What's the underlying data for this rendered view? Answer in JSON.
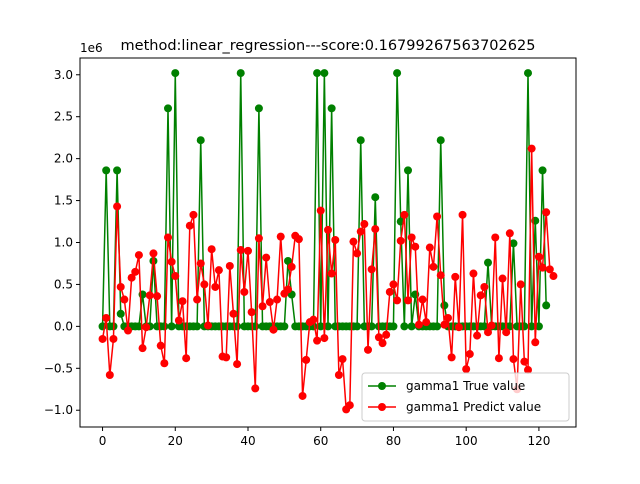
{
  "chart_data": {
    "type": "line",
    "title": "method:linear_regression---score:0.16799267563702625",
    "offset_label": "1e6",
    "xlim": [
      -6.2,
      130.2
    ],
    "ylim": [
      -1.2,
      3.2
    ],
    "x_ticks": [
      0,
      20,
      40,
      60,
      80,
      100,
      120
    ],
    "y_ticks": [
      -1.0,
      -0.5,
      0.0,
      0.5,
      1.0,
      1.5,
      2.0,
      2.5,
      3.0
    ],
    "x_tick_labels": [
      "0",
      "20",
      "40",
      "60",
      "80",
      "100",
      "120"
    ],
    "y_tick_labels": [
      "−1.0",
      "−0.5",
      "0.0",
      "0.5",
      "1.0",
      "1.5",
      "2.0",
      "2.5",
      "3.0"
    ],
    "legend_position": "lower-right",
    "series": [
      {
        "name": "gamma1 True value",
        "color": "#008000",
        "values": [
          0,
          1.86,
          0,
          0,
          1.86,
          0.15,
          0,
          0,
          0,
          0,
          0,
          0.38,
          0,
          0,
          0.78,
          0,
          0,
          0,
          2.6,
          0,
          3.02,
          0,
          0,
          0,
          0,
          0,
          0,
          2.22,
          0,
          0,
          0,
          0,
          0,
          0,
          0,
          0,
          0,
          0,
          3.02,
          0,
          0,
          0,
          0,
          2.6,
          0,
          0,
          0,
          0,
          0,
          0,
          0,
          0.78,
          0.38,
          0,
          0,
          0,
          0,
          0,
          0,
          3.02,
          0,
          3.02,
          0,
          2.6,
          0,
          0,
          0,
          0,
          0,
          0,
          0,
          2.22,
          0,
          0,
          0,
          1.54,
          0,
          0,
          0,
          0,
          0,
          3.02,
          1.25,
          0,
          1.86,
          0,
          0.38,
          0,
          0,
          0,
          0,
          0,
          0,
          2.22,
          0.25,
          0,
          0,
          0,
          0,
          0,
          0,
          0,
          0,
          0,
          0,
          0,
          0.76,
          0,
          0,
          0,
          0,
          0,
          0,
          0.99,
          0,
          0,
          0,
          3.02,
          0,
          1.26,
          0,
          1.86,
          0.25
        ]
      },
      {
        "name": "gamma1 Predict value",
        "color": "#ff0000",
        "values": [
          -0.15,
          0.1,
          -0.58,
          -0.15,
          1.43,
          0.47,
          0.32,
          -0.05,
          0.58,
          0.65,
          0.85,
          -0.26,
          -0.01,
          0.37,
          0.87,
          0.36,
          -0.23,
          -0.44,
          1.06,
          0.77,
          0.6,
          0.07,
          0.3,
          -0.38,
          1.2,
          1.33,
          0.32,
          0.75,
          0.5,
          0.01,
          0.92,
          0.47,
          0.67,
          -0.36,
          -0.37,
          0.72,
          0.15,
          -0.45,
          0.91,
          0.41,
          0.9,
          0.17,
          -0.74,
          1.05,
          0.24,
          0.82,
          0.29,
          -0.04,
          0.32,
          1.07,
          0.39,
          0.44,
          0.71,
          1.08,
          1.04,
          -0.83,
          -0.4,
          0.05,
          0.08,
          -0.17,
          1.38,
          -0.14,
          1.15,
          0.63,
          1.03,
          -0.58,
          -0.39,
          -0.99,
          -0.94,
          1.01,
          0.87,
          1.13,
          1.22,
          -0.28,
          0.68,
          1.16,
          -0.13,
          -0.2,
          -0.1,
          0.41,
          0.5,
          0.31,
          1.02,
          1.33,
          0.31,
          1.06,
          0.95,
          0.02,
          0.32,
          0.05,
          0.94,
          0.71,
          1.31,
          0.61,
          0.02,
          0.1,
          -0.37,
          0.59,
          -0.01,
          1.33,
          -0.51,
          -0.33,
          0.63,
          -0.11,
          0.37,
          0.47,
          -0.07,
          0.01,
          1.06,
          -0.38,
          0.57,
          -0.07,
          1.11,
          -0.39,
          -0.75,
          0.5,
          -0.42,
          -0.52,
          2.12,
          -0.19,
          0.83,
          0.7,
          1.36,
          0.68,
          0.6
        ]
      }
    ]
  }
}
